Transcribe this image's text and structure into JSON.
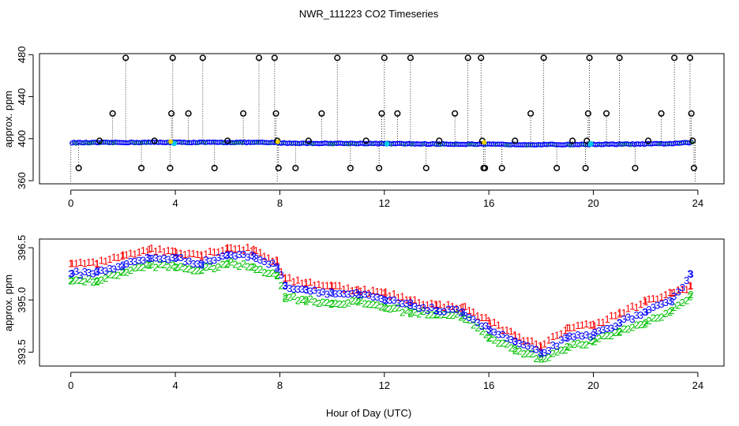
{
  "title": "NWR_111223  CO2 Timeseries",
  "xlabel": "Hour of Day (UTC)",
  "colors": {
    "flag0": "#000000",
    "flag1": "#ff0000",
    "flag2": "#00c000",
    "flag3": "#0000ff",
    "cyan": "#00c8e8",
    "yellow": "#e8d000"
  },
  "chart_data": [
    {
      "type": "scatter",
      "name": "top-panel",
      "ylabel": "approx. ppm",
      "xlim": [
        -1.2,
        25
      ],
      "ylim": [
        357,
        481
      ],
      "xticks": [
        0,
        4,
        8,
        12,
        16,
        20,
        24
      ],
      "xtick_labels": [
        "0",
        "4",
        "8",
        "12",
        "16",
        "20",
        "24"
      ],
      "yticks": [
        360,
        400,
        440,
        480
      ],
      "ytick_labels": [
        "360",
        "400",
        "440",
        "480"
      ],
      "baseline": {
        "x": [
          0,
          1,
          2,
          3,
          4,
          5,
          6,
          7,
          7.9,
          8.2,
          9,
          10,
          11,
          12,
          13,
          14,
          15,
          16,
          17,
          18,
          19,
          20,
          21,
          22,
          23,
          23.7
        ],
        "y": [
          396.2,
          396.2,
          396.4,
          396.5,
          396.5,
          396.4,
          396.5,
          396.4,
          396.2,
          395.8,
          395.6,
          395.5,
          395.5,
          395.3,
          395.1,
          394.9,
          394.8,
          394.6,
          394.5,
          394.4,
          394.4,
          394.6,
          394.7,
          394.9,
          395.3,
          396.3
        ]
      },
      "spike_series": {
        "name": "flagged (0)",
        "x": [
          0.3,
          1.1,
          1.6,
          2.1,
          2.7,
          3.2,
          3.8,
          3.85,
          3.9,
          4.5,
          5.05,
          5.5,
          6.0,
          6.6,
          7.2,
          7.8,
          7.85,
          7.9,
          7.95,
          8.6,
          9.1,
          9.6,
          10.2,
          10.7,
          11.3,
          11.8,
          11.9,
          12.0,
          12.5,
          13.0,
          13.6,
          14.1,
          14.7,
          15.2,
          15.7,
          15.75,
          15.8,
          15.85,
          16.5,
          17.0,
          17.6,
          18.1,
          18.6,
          19.2,
          19.7,
          19.75,
          19.8,
          19.85,
          20.5,
          21.0,
          21.6,
          22.1,
          22.6,
          23.1,
          23.7,
          23.75,
          23.8,
          23.85
        ],
        "y": [
          372,
          398,
          424,
          477,
          372,
          398,
          372,
          424,
          477,
          424,
          477,
          372,
          398,
          424,
          477,
          477,
          424,
          398,
          372,
          372,
          398,
          424,
          477,
          372,
          398,
          372,
          424,
          477,
          424,
          477,
          372,
          398,
          424,
          477,
          477,
          398,
          372,
          372,
          372,
          398,
          424,
          477,
          372,
          398,
          372,
          398,
          424,
          477,
          424,
          477,
          372,
          398,
          424,
          477,
          477,
          424,
          398,
          372
        ]
      },
      "highlight_points": {
        "cyan": [
          [
            3.95,
            395.5
          ],
          [
            12.1,
            395.0
          ],
          [
            19.9,
            395.0
          ]
        ],
        "yellow": [
          [
            3.82,
            397.2
          ],
          [
            7.92,
            397.0
          ],
          [
            15.82,
            396.5
          ]
        ]
      }
    },
    {
      "type": "scatter",
      "name": "bottom-panel",
      "ylabel": "approx. ppm",
      "xlim": [
        -1.2,
        25
      ],
      "ylim": [
        393.1,
        396.75
      ],
      "xticks": [
        0,
        4,
        8,
        12,
        16,
        20,
        24
      ],
      "xtick_labels": [
        "0",
        "4",
        "8",
        "12",
        "16",
        "20",
        "24"
      ],
      "yticks": [
        393.5,
        395.0,
        396.5
      ],
      "ytick_labels": [
        "393.5",
        "395.0",
        "396.5"
      ],
      "marker_labels": {
        "flag1": "1",
        "flag2": "2",
        "flag3": "3"
      },
      "series": [
        {
          "name": "1",
          "x": [
            0,
            1,
            2,
            3,
            4,
            5,
            6,
            7,
            7.9,
            8.2,
            9,
            10,
            11,
            12,
            13,
            14,
            15,
            16,
            17,
            18,
            19,
            20,
            21,
            22,
            23,
            23.7
          ],
          "y": [
            396.05,
            396.05,
            396.3,
            396.45,
            396.4,
            396.3,
            396.5,
            396.45,
            396.1,
            395.6,
            395.5,
            395.4,
            395.3,
            395.2,
            395.0,
            394.85,
            394.8,
            394.4,
            394.0,
            393.65,
            394.2,
            394.3,
            394.6,
            394.95,
            395.2,
            395.4
          ]
        },
        {
          "name": "2",
          "x": [
            0,
            1,
            2,
            3,
            4,
            5,
            6,
            7,
            7.9,
            8.2,
            9,
            10,
            11,
            12,
            13,
            14,
            15,
            16,
            17,
            18,
            19,
            20,
            21,
            22,
            23,
            23.7
          ],
          "y": [
            395.55,
            395.55,
            395.8,
            396.0,
            395.95,
            395.85,
            396.05,
            395.95,
            395.7,
            395.1,
            395.0,
            394.9,
            394.95,
            394.8,
            394.65,
            394.6,
            394.55,
            393.9,
            393.6,
            393.3,
            393.65,
            393.8,
            394.1,
            394.35,
            394.7,
            395.1
          ]
        },
        {
          "name": "3",
          "x": [
            0,
            1,
            2,
            3,
            4,
            5,
            6,
            7,
            7.9,
            8.2,
            9,
            10,
            11,
            12,
            13,
            14,
            15,
            16,
            17,
            18,
            19,
            20,
            21,
            22,
            23,
            23.7
          ],
          "y": [
            395.75,
            395.8,
            396.0,
            396.2,
            396.2,
            396.05,
            396.3,
            396.25,
            395.95,
            395.4,
            395.3,
            395.2,
            395.15,
            395.0,
            394.85,
            394.7,
            394.65,
            394.15,
            393.8,
            393.45,
            393.9,
            394.0,
            394.35,
            394.65,
            394.95,
            395.75
          ]
        }
      ]
    }
  ]
}
